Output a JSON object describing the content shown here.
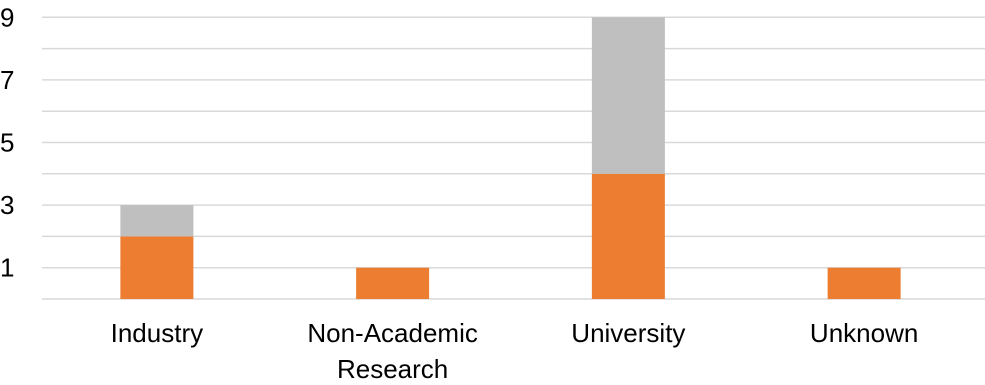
{
  "chart_data": {
    "type": "bar",
    "stacked": true,
    "categories": [
      [
        "Industry"
      ],
      [
        "Non-Academic",
        "Research"
      ],
      [
        "University"
      ],
      [
        "Unknown"
      ]
    ],
    "series": [
      {
        "values": [
          2,
          1,
          4,
          1
        ],
        "color": "#ED7D31"
      },
      {
        "values": [
          1,
          0,
          5,
          0
        ],
        "color": "#BFBFBF"
      }
    ],
    "ylim": [
      0,
      9
    ],
    "y_tick_labels": [
      "1",
      "3",
      "5",
      "7",
      "9"
    ],
    "y_gridlines": [
      0,
      1,
      2,
      3,
      4,
      5,
      6,
      7,
      8,
      9
    ],
    "grid": true,
    "legend": "none",
    "gridline_color": "#D9D9D9"
  }
}
